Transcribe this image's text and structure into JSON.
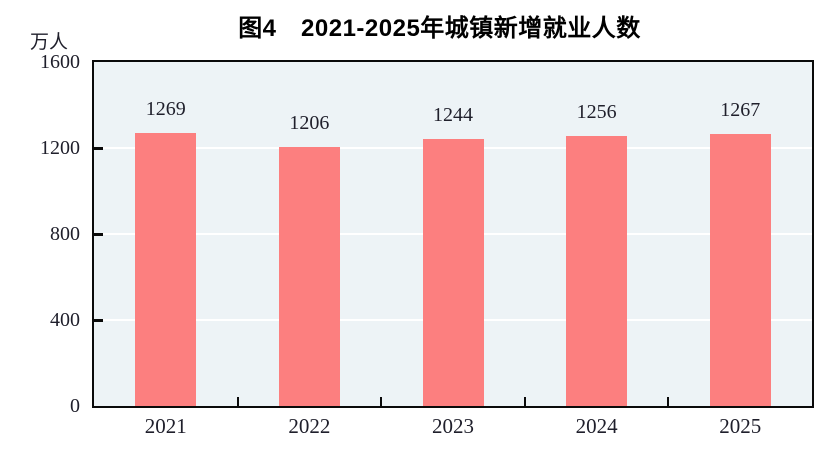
{
  "chart": {
    "title": "图4　2021-2025年城镇新增就业人数",
    "unit_label": "万人"
  },
  "chart_data": {
    "type": "bar",
    "title": "图4　2021-2025年城镇新增就业人数",
    "xlabel": "",
    "ylabel": "万人",
    "categories": [
      "2021",
      "2022",
      "2023",
      "2024",
      "2025"
    ],
    "values": [
      1269,
      1206,
      1244,
      1256,
      1267
    ],
    "ylim": [
      0,
      1600
    ],
    "yticks": [
      0,
      400,
      800,
      1200,
      1600
    ],
    "gridline_values": [
      400,
      800,
      1200
    ],
    "grid": true,
    "legend": false,
    "colors": {
      "bar": "#fc7f7f",
      "plot_background": "#edf3f6",
      "gridline": "#ffffff",
      "frame": "#0a0a0a",
      "text": "#1f1f2b"
    }
  }
}
